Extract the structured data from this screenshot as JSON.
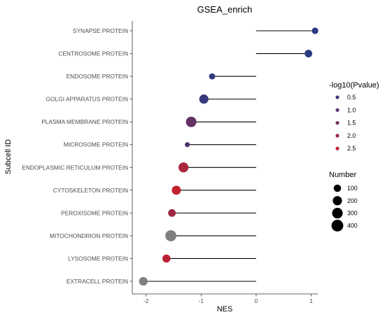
{
  "chart_data": {
    "type": "lollipop",
    "title": "GSEA_enrich",
    "xlabel": "NES",
    "ylabel": "Subcell ID",
    "xlim": [
      -2.25,
      1.12
    ],
    "xticks": [
      "-2",
      "-1",
      "0",
      "1"
    ],
    "xtick_values": [
      -2,
      -1,
      0,
      1
    ],
    "grid": false,
    "legend_position": "right",
    "categories": [
      "SYNAPSE PROTEIN",
      "CENTROSOME PROTEIN",
      "ENDOSOME PROTEIN",
      "GOLGI APPARATUS PROTEIN",
      "PLASMA MEMBRANE PROTEIN",
      "MICROSOME PROTEIN",
      "ENDOPLASMIC RETICULUM PROTEIN",
      "CYTOSKELETON PROTEIN",
      "PEROXISOME PROTEIN",
      "MITOCHONDRION PROTEIN",
      "LYSOSOME PROTEIN",
      "EXTRACELL PROTEIN"
    ],
    "nes": [
      1.07,
      0.95,
      -0.8,
      -0.95,
      -1.18,
      -1.25,
      -1.32,
      -1.45,
      -1.53,
      -1.55,
      -1.63,
      -2.05
    ],
    "number": [
      60,
      110,
      50,
      200,
      290,
      20,
      250,
      190,
      110,
      340,
      130,
      160
    ],
    "neglog10_pvalue": [
      0.4,
      0.4,
      0.45,
      0.55,
      1.2,
      0.9,
      2.2,
      2.5,
      2.0,
      null,
      2.4,
      null
    ],
    "na_color": "#808080",
    "color_scale": {
      "low_color": "#2b3b83",
      "high_color": "#c8202d",
      "domain": [
        0.4,
        2.6
      ]
    },
    "color_legend": {
      "title": "-log10(Pvalue)",
      "items": [
        {
          "label": "0.5",
          "value": 0.5,
          "color": "#3a3a7e"
        },
        {
          "label": "1.0",
          "value": 1.0,
          "color": "#5c3773"
        },
        {
          "label": "1.5",
          "value": 1.5,
          "color": "#7b3160"
        },
        {
          "label": "2.0",
          "value": 2.0,
          "color": "#9d2a48"
        },
        {
          "label": "2.5",
          "value": 2.5,
          "color": "#c0232f"
        }
      ]
    },
    "size_legend": {
      "title": "Number",
      "items": [
        {
          "label": "100",
          "value": 100
        },
        {
          "label": "200",
          "value": 200
        },
        {
          "label": "300",
          "value": 300
        },
        {
          "label": "400",
          "value": 400
        }
      ]
    }
  }
}
